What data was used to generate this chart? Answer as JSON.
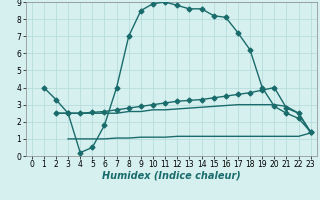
{
  "xlabel": "Humidex (Indice chaleur)",
  "bg_color": "#d6f0f0",
  "grid_color": "#b8dede",
  "line_color": "#1a6b6b",
  "xlim": [
    -0.5,
    23.5
  ],
  "ylim": [
    0,
    9
  ],
  "xticks": [
    0,
    1,
    2,
    3,
    4,
    5,
    6,
    7,
    8,
    9,
    10,
    11,
    12,
    13,
    14,
    15,
    16,
    17,
    18,
    19,
    20,
    21,
    22,
    23
  ],
  "yticks": [
    0,
    1,
    2,
    3,
    4,
    5,
    6,
    7,
    8,
    9
  ],
  "line1_x": [
    1,
    2,
    3,
    4,
    5,
    6,
    7,
    8,
    9,
    10,
    11,
    12,
    13,
    14,
    15,
    16,
    17,
    18,
    19,
    20,
    21,
    22,
    23
  ],
  "line1_y": [
    4.0,
    3.3,
    2.5,
    0.2,
    0.5,
    1.8,
    4.0,
    7.0,
    8.5,
    8.9,
    9.0,
    8.8,
    8.6,
    8.6,
    8.2,
    8.1,
    7.2,
    6.2,
    4.0,
    2.9,
    2.5,
    2.2,
    1.4
  ],
  "line2_x": [
    2,
    3,
    4,
    5,
    6,
    7,
    8,
    9,
    10,
    11,
    12,
    13,
    14,
    15,
    16,
    17,
    18,
    19,
    20,
    21,
    22,
    23
  ],
  "line2_y": [
    2.5,
    2.5,
    2.5,
    2.55,
    2.6,
    2.7,
    2.8,
    2.9,
    3.0,
    3.1,
    3.2,
    3.25,
    3.3,
    3.4,
    3.5,
    3.6,
    3.7,
    3.85,
    4.0,
    2.8,
    2.5,
    1.4
  ],
  "line3_x": [
    2,
    3,
    4,
    5,
    6,
    7,
    8,
    9,
    10,
    11,
    12,
    13,
    14,
    15,
    16,
    17,
    18,
    19,
    20,
    21,
    22,
    23
  ],
  "line3_y": [
    2.5,
    2.5,
    2.5,
    2.5,
    2.5,
    2.5,
    2.6,
    2.6,
    2.7,
    2.7,
    2.75,
    2.8,
    2.85,
    2.9,
    2.95,
    3.0,
    3.0,
    3.0,
    3.0,
    2.9,
    2.5,
    1.35
  ],
  "line4_x": [
    3,
    4,
    5,
    6,
    7,
    8,
    9,
    10,
    11,
    12,
    13,
    14,
    15,
    16,
    17,
    18,
    19,
    20,
    21,
    22,
    23
  ],
  "line4_y": [
    1.0,
    1.0,
    1.0,
    1.0,
    1.05,
    1.05,
    1.1,
    1.1,
    1.1,
    1.15,
    1.15,
    1.15,
    1.15,
    1.15,
    1.15,
    1.15,
    1.15,
    1.15,
    1.15,
    1.15,
    1.35
  ],
  "marker_size": 2.5,
  "line_width": 1.0,
  "tick_fontsize": 5.5,
  "label_fontsize": 7
}
